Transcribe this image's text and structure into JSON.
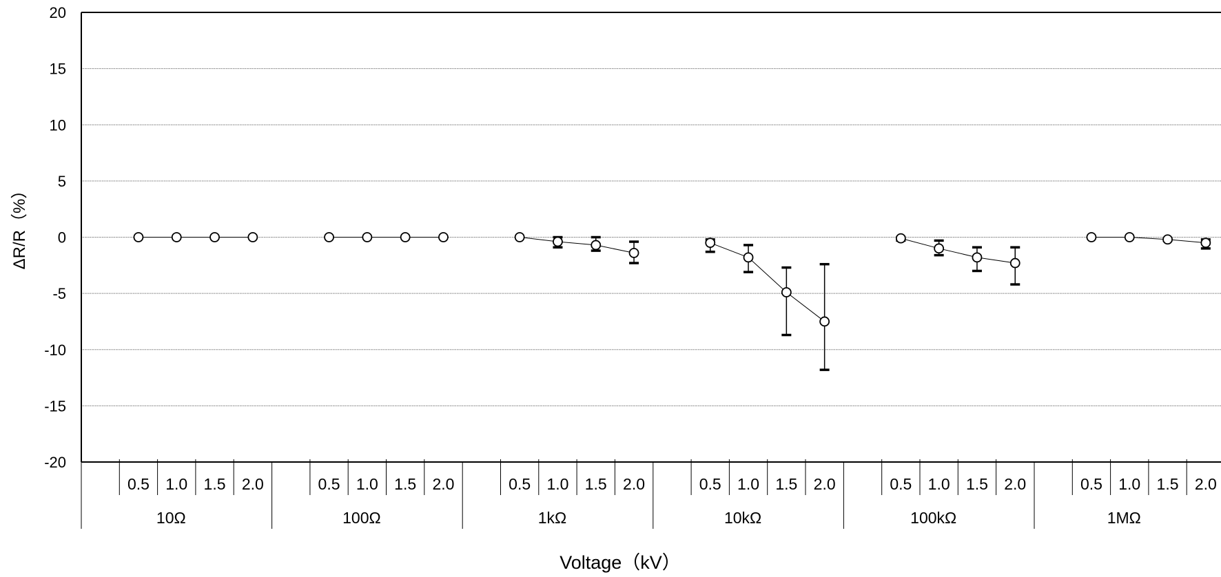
{
  "chart_data": {
    "type": "scatter",
    "xlabel": "Voltage（kV）",
    "ylabel": "ΔR/R（%）",
    "ylim": [
      -20,
      20
    ],
    "yticks": [
      20,
      15,
      10,
      5,
      0,
      -5,
      -10,
      -15,
      -20
    ],
    "grid": true,
    "legend": "none",
    "groups": [
      "10Ω",
      "100Ω",
      "1kΩ",
      "10kΩ",
      "100kΩ",
      "1MΩ"
    ],
    "voltages": [
      "0.5",
      "1.0",
      "1.5",
      "2.0"
    ],
    "series": [
      {
        "group": "10Ω",
        "values": [
          0,
          0,
          0,
          0
        ],
        "error_low": [
          0,
          0,
          0,
          0
        ],
        "error_high": [
          0,
          0,
          0,
          0
        ]
      },
      {
        "group": "100Ω",
        "values": [
          0,
          0,
          0,
          0
        ],
        "error_low": [
          0,
          0,
          0,
          0
        ],
        "error_high": [
          0,
          0,
          0,
          0
        ]
      },
      {
        "group": "1kΩ",
        "values": [
          0,
          -0.4,
          -0.7,
          -1.4
        ],
        "error_low": [
          0,
          0.5,
          0.5,
          0.9
        ],
        "error_high": [
          0,
          0.4,
          0.7,
          1.0
        ]
      },
      {
        "group": "10kΩ",
        "values": [
          -0.5,
          -1.8,
          -4.9,
          -7.5
        ],
        "error_low": [
          0.8,
          1.3,
          3.8,
          4.3
        ],
        "error_high": [
          0.3,
          1.1,
          2.2,
          5.1
        ]
      },
      {
        "group": "100kΩ",
        "values": [
          -0.1,
          -1.0,
          -1.8,
          -2.3
        ],
        "error_low": [
          0.2,
          0.6,
          1.2,
          1.9
        ],
        "error_high": [
          0.1,
          0.7,
          0.9,
          1.4
        ]
      },
      {
        "group": "1MΩ",
        "values": [
          0,
          0,
          -0.2,
          -0.5
        ],
        "error_low": [
          0,
          0,
          0.1,
          0.5
        ],
        "error_high": [
          0,
          0,
          0.1,
          0.3
        ]
      }
    ]
  }
}
